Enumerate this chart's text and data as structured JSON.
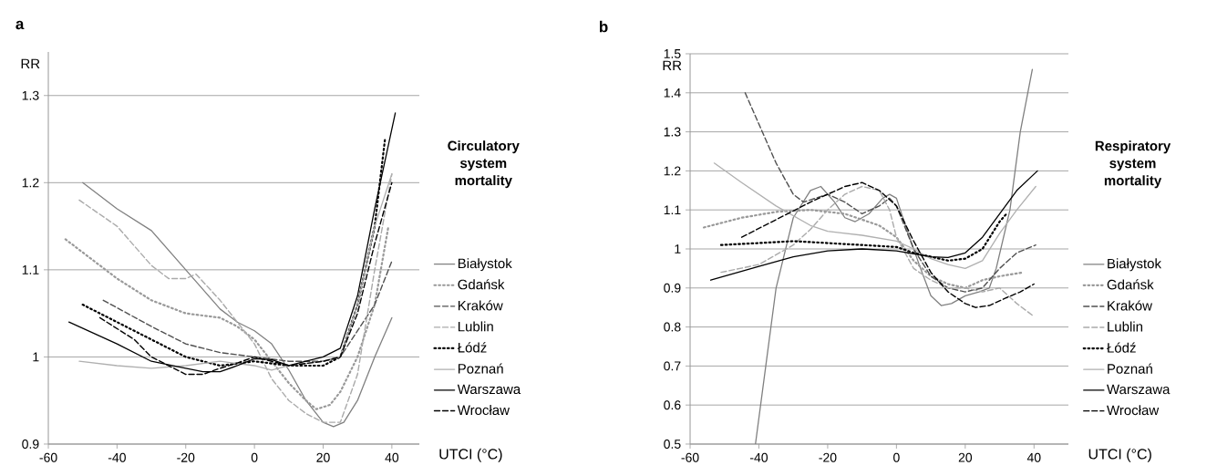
{
  "chart_data": [
    {
      "type": "line",
      "title": "a",
      "legend_title": "Circulatory system mortality",
      "xlabel": "UTCI (°C)",
      "ylabel": "RR",
      "xlim": [
        -60,
        48
      ],
      "ylim": [
        0.9,
        1.35
      ],
      "xticks": [
        -60,
        -40,
        -20,
        0,
        20,
        40
      ],
      "yticks": [
        0.9,
        1,
        1.1,
        1.2,
        1.3
      ],
      "grid": "y",
      "legend": "right",
      "series": [
        {
          "name": "Białystok",
          "color": "#808080",
          "line_style": "solid",
          "x": [
            -50,
            -40,
            -30,
            -20,
            -10,
            -5,
            0,
            5,
            10,
            15,
            20,
            23,
            26,
            30,
            35,
            40
          ],
          "values": [
            1.2,
            1.17,
            1.145,
            1.1,
            1.055,
            1.04,
            1.03,
            1.015,
            0.985,
            0.95,
            0.925,
            0.92,
            0.925,
            0.95,
            1.0,
            1.045
          ]
        },
        {
          "name": "Gdańsk",
          "color": "#999999",
          "line_style": "dotted",
          "x": [
            -55,
            -40,
            -30,
            -20,
            -10,
            -5,
            0,
            5,
            10,
            15,
            18,
            22,
            25,
            30,
            35,
            39
          ],
          "values": [
            1.135,
            1.09,
            1.065,
            1.05,
            1.045,
            1.035,
            1.02,
            0.995,
            0.97,
            0.95,
            0.94,
            0.945,
            0.96,
            1.0,
            1.06,
            1.15
          ]
        },
        {
          "name": "Kraków",
          "color": "#505050",
          "line_style": "dashed",
          "x": [
            -44,
            -30,
            -20,
            -10,
            0,
            10,
            20,
            25,
            30,
            35,
            40
          ],
          "values": [
            1.065,
            1.035,
            1.015,
            1.005,
            1.0,
            0.995,
            0.995,
            1.0,
            1.03,
            1.06,
            1.11
          ]
        },
        {
          "name": "Lublin",
          "color": "#aaaaaa",
          "line_style": "dashed",
          "x": [
            -51,
            -40,
            -30,
            -25,
            -20,
            -17,
            -10,
            -5,
            0,
            5,
            10,
            15,
            20,
            25,
            30,
            35,
            40
          ],
          "values": [
            1.18,
            1.15,
            1.105,
            1.09,
            1.09,
            1.095,
            1.065,
            1.04,
            1.015,
            0.975,
            0.95,
            0.935,
            0.925,
            0.925,
            0.98,
            1.1,
            1.21
          ]
        },
        {
          "name": "Łódź",
          "color": "#000000",
          "line_style": "dotted",
          "x": [
            -50,
            -40,
            -30,
            -20,
            -10,
            0,
            10,
            20,
            25,
            30,
            35,
            38
          ],
          "values": [
            1.06,
            1.04,
            1.02,
            1.0,
            0.99,
            0.995,
            0.99,
            0.99,
            1.0,
            1.06,
            1.15,
            1.25
          ]
        },
        {
          "name": "Poznań",
          "color": "#b0b0b0",
          "line_style": "solid",
          "x": [
            -51,
            -40,
            -30,
            -20,
            -10,
            0,
            5,
            10,
            20,
            25,
            30,
            35,
            40
          ],
          "values": [
            0.995,
            0.99,
            0.987,
            0.99,
            0.995,
            0.99,
            0.985,
            0.99,
            0.995,
            1.0,
            1.06,
            1.15,
            1.21
          ]
        },
        {
          "name": "Warszawa",
          "color": "#000000",
          "line_style": "solid",
          "x": [
            -54,
            -40,
            -30,
            -20,
            -15,
            -10,
            -5,
            0,
            5,
            10,
            15,
            20,
            25,
            30,
            35,
            41
          ],
          "values": [
            1.04,
            1.015,
            0.995,
            0.987,
            0.983,
            0.983,
            0.99,
            0.998,
            0.997,
            0.99,
            0.995,
            1.0,
            1.01,
            1.07,
            1.17,
            1.28
          ]
        },
        {
          "name": "Wrocław",
          "color": "#000000",
          "line_style": "dashed",
          "x": [
            -45,
            -35,
            -30,
            -20,
            -15,
            -10,
            -5,
            0,
            10,
            20,
            25,
            30,
            35,
            40
          ],
          "values": [
            1.045,
            1.02,
            1.0,
            0.98,
            0.98,
            0.987,
            0.993,
            1.0,
            0.99,
            0.995,
            1.0,
            1.05,
            1.13,
            1.2
          ]
        }
      ]
    },
    {
      "type": "line",
      "title": "b",
      "legend_title": "Respiratory system mortality",
      "xlabel": "UTCI (°C)",
      "ylabel": "RR",
      "xlim": [
        -60,
        50
      ],
      "ylim": [
        0.5,
        1.5
      ],
      "xticks": [
        -60,
        -40,
        -20,
        0,
        20,
        40
      ],
      "yticks": [
        0.5,
        0.6,
        0.7,
        0.8,
        0.9,
        1,
        1.1,
        1.2,
        1.3,
        1.4,
        1.5
      ],
      "grid": "y",
      "legend": "right",
      "series": [
        {
          "name": "Białystok",
          "color": "#808080",
          "line_style": "solid",
          "x": [
            -41,
            -38,
            -35,
            -30,
            -25,
            -22,
            -18,
            -15,
            -12,
            -8,
            -4,
            -2,
            0,
            3,
            7,
            10,
            13,
            16,
            20,
            24,
            27,
            29,
            33,
            36,
            39.5
          ],
          "values": [
            0.5,
            0.7,
            0.9,
            1.08,
            1.15,
            1.16,
            1.12,
            1.08,
            1.07,
            1.09,
            1.13,
            1.14,
            1.13,
            1.05,
            0.95,
            0.88,
            0.855,
            0.86,
            0.88,
            0.89,
            0.9,
            0.95,
            1.1,
            1.3,
            1.46
          ]
        },
        {
          "name": "Gdańsk",
          "color": "#999999",
          "line_style": "dotted",
          "x": [
            -56,
            -45,
            -35,
            -25,
            -15,
            -5,
            0,
            5,
            10,
            15,
            20,
            25,
            30,
            37
          ],
          "values": [
            1.055,
            1.08,
            1.095,
            1.1,
            1.09,
            1.06,
            1.03,
            0.97,
            0.93,
            0.91,
            0.9,
            0.92,
            0.93,
            0.94
          ]
        },
        {
          "name": "Kraków",
          "color": "#505050",
          "line_style": "dashed",
          "x": [
            -44,
            -40,
            -35,
            -30,
            -27,
            -20,
            -15,
            -10,
            -5,
            -2,
            0,
            5,
            10,
            15,
            20,
            25,
            30,
            35,
            40.5
          ],
          "values": [
            1.4,
            1.32,
            1.22,
            1.14,
            1.12,
            1.14,
            1.12,
            1.09,
            1.11,
            1.13,
            1.11,
            1.0,
            0.93,
            0.9,
            0.89,
            0.9,
            0.95,
            0.99,
            1.01
          ]
        },
        {
          "name": "Lublin",
          "color": "#aaaaaa",
          "line_style": "dashed",
          "x": [
            -51,
            -40,
            -30,
            -25,
            -20,
            -15,
            -10,
            -5,
            -2,
            0,
            5,
            10,
            15,
            20,
            25,
            30,
            35,
            39.5
          ],
          "values": [
            0.94,
            0.96,
            1.01,
            1.05,
            1.1,
            1.14,
            1.16,
            1.15,
            1.1,
            1.03,
            0.95,
            0.92,
            0.9,
            0.9,
            0.89,
            0.9,
            0.86,
            0.83
          ]
        },
        {
          "name": "Łódź",
          "color": "#000000",
          "line_style": "dotted",
          "x": [
            -51,
            -40,
            -30,
            -20,
            -10,
            0,
            5,
            10,
            15,
            20,
            25,
            30,
            32
          ],
          "values": [
            1.01,
            1.015,
            1.02,
            1.015,
            1.01,
            1.005,
            0.99,
            0.98,
            0.97,
            0.975,
            1.0,
            1.07,
            1.09
          ]
        },
        {
          "name": "Poznań",
          "color": "#b0b0b0",
          "line_style": "solid",
          "x": [
            -53,
            -45,
            -35,
            -25,
            -20,
            -10,
            0,
            5,
            10,
            15,
            20,
            25,
            30,
            35,
            40.5
          ],
          "values": [
            1.22,
            1.17,
            1.11,
            1.06,
            1.045,
            1.035,
            1.02,
            1.0,
            0.975,
            0.96,
            0.95,
            0.97,
            1.04,
            1.1,
            1.16
          ]
        },
        {
          "name": "Warszawa",
          "color": "#000000",
          "line_style": "solid",
          "x": [
            -54,
            -40,
            -30,
            -20,
            -10,
            0,
            10,
            15,
            20,
            25,
            30,
            35,
            41
          ],
          "values": [
            0.92,
            0.955,
            0.98,
            0.995,
            1.0,
            0.995,
            0.98,
            0.978,
            0.99,
            1.03,
            1.09,
            1.15,
            1.2
          ]
        },
        {
          "name": "Wrocław",
          "color": "#000000",
          "line_style": "dashed",
          "x": [
            -45,
            -35,
            -25,
            -15,
            -10,
            -5,
            0,
            5,
            10,
            15,
            20,
            23,
            27,
            32,
            36,
            40
          ],
          "values": [
            1.03,
            1.075,
            1.12,
            1.16,
            1.17,
            1.15,
            1.11,
            1.02,
            0.94,
            0.89,
            0.86,
            0.85,
            0.855,
            0.875,
            0.89,
            0.91
          ]
        }
      ]
    }
  ]
}
